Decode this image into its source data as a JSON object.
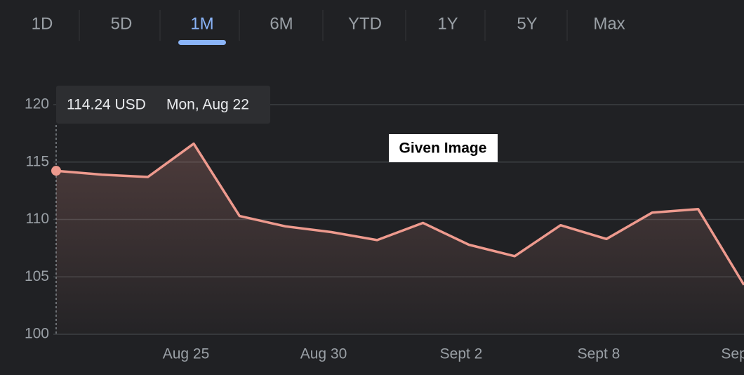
{
  "tabs": [
    "1D",
    "5D",
    "1M",
    "6M",
    "YTD",
    "1Y",
    "5Y",
    "Max"
  ],
  "active_tab": 2,
  "overlay_label": "Given Image",
  "chart_data": {
    "type": "line",
    "categories": [
      null,
      null,
      null,
      "Aug 25",
      null,
      null,
      "Aug 30",
      null,
      null,
      "Sept 2",
      null,
      null,
      "Sept 8",
      null,
      null,
      "Sept"
    ],
    "values": [
      114.24,
      113.9,
      113.7,
      116.6,
      110.3,
      109.4,
      108.9,
      108.2,
      109.7,
      107.8,
      106.8,
      109.5,
      108.3,
      110.6,
      110.9,
      104.3
    ],
    "color": "#ee9a8e",
    "ylim": [
      100,
      120
    ],
    "yticks": [
      100,
      105,
      110,
      115,
      120
    ],
    "grid": true,
    "tooltip": {
      "index": 0,
      "value_label": "114.24 USD",
      "date": "Mon, Aug 22"
    }
  }
}
